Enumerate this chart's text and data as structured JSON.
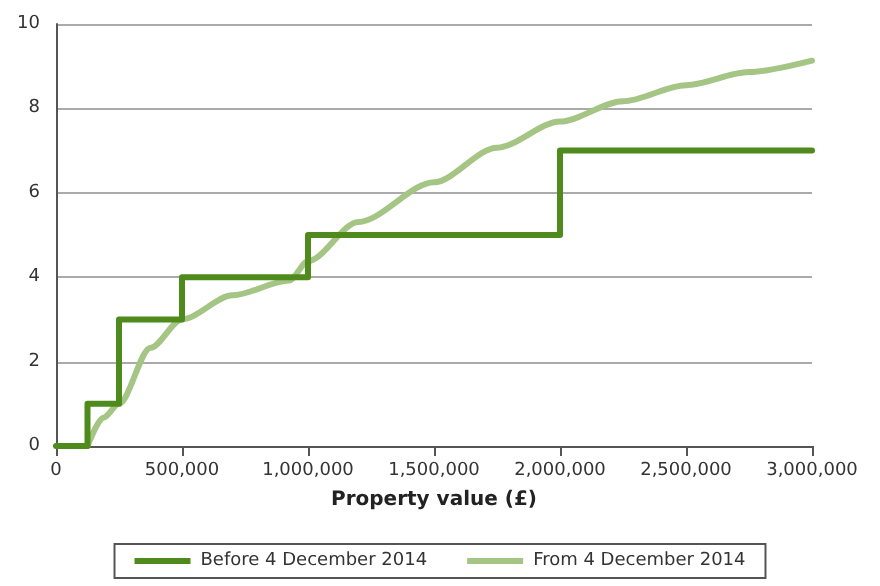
{
  "chart_data": {
    "type": "line",
    "xlabel": "Property value (£)",
    "xlim": [
      0,
      3000000
    ],
    "xticks": [
      0,
      {
        "value": 500000,
        "label": "500,000"
      },
      {
        "value": 1000000,
        "label": "1,000,000"
      },
      {
        "value": 1500000,
        "label": "1,500,000"
      },
      {
        "value": 2000000,
        "label": "2,000,000"
      },
      {
        "value": 2500000,
        "label": "2,500,000"
      },
      {
        "value": 3000000,
        "label": "3,000,000"
      }
    ],
    "ylim": [
      0,
      10
    ],
    "yticks": [
      0,
      2,
      4,
      6,
      8,
      10
    ],
    "series": [
      {
        "name": "Before 4 December 2014",
        "type": "step",
        "color": "#4e8a1c",
        "x": [
          0,
          125000,
          250000,
          500000,
          1000000,
          2000000,
          3000000
        ],
        "values": [
          0,
          1,
          3,
          4,
          5,
          7,
          7
        ]
      },
      {
        "name": "From 4 December 2014",
        "color": "#a4c584",
        "x": [
          125000,
          187500,
          250000,
          375000,
          500000,
          700000,
          925000,
          1000000,
          1200000,
          1500000,
          1750000,
          2000000,
          2250000,
          2500000,
          2750000,
          3000000
        ],
        "values": [
          0,
          0.67,
          1,
          2.33,
          3,
          3.57,
          3.92,
          4.38,
          5.31,
          6.25,
          7.07,
          7.69,
          8.17,
          8.55,
          8.86,
          9.13
        ]
      }
    ],
    "grid": "y",
    "legend": "bottom",
    "marker": "none"
  }
}
